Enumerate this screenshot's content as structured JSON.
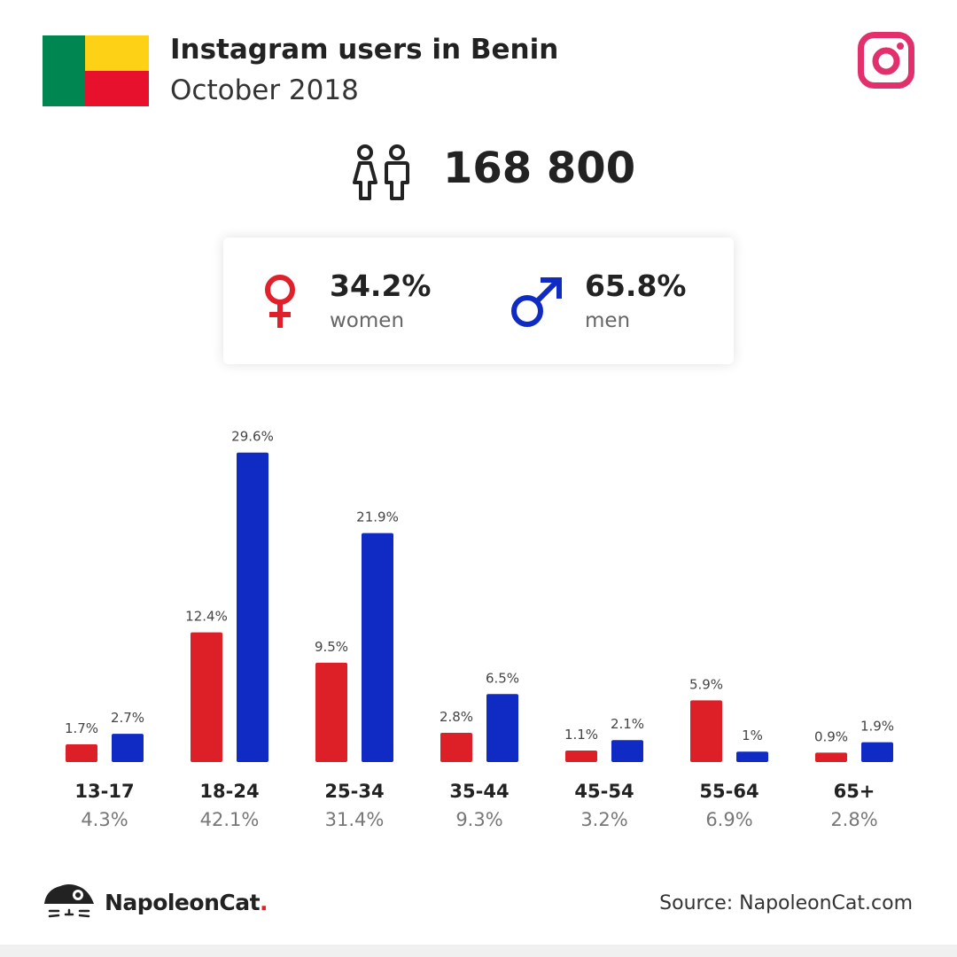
{
  "header": {
    "title": "Instagram users in Benin",
    "subtitle": "October 2018",
    "flag_colors": {
      "green": "#008751",
      "yellow": "#fcd116",
      "red": "#e8112d"
    },
    "platform_icon": "instagram-icon",
    "platform_color": "#e1306c"
  },
  "summary": {
    "total_users": "168 800",
    "people_icon": "people-icon",
    "women": {
      "percent": "34.2%",
      "label": "women",
      "icon": "female-symbol-icon",
      "color": "#e0202a"
    },
    "men": {
      "percent": "65.8%",
      "label": "men",
      "icon": "male-symbol-icon",
      "color": "#0f2bc4"
    }
  },
  "colors": {
    "women": "#dd2027",
    "men": "#0f2bc4"
  },
  "chart_data": {
    "type": "bar",
    "categories": [
      "13-17",
      "18-24",
      "25-34",
      "35-44",
      "45-54",
      "55-64",
      "65+"
    ],
    "group_totals": [
      "4.3%",
      "42.1%",
      "31.4%",
      "9.3%",
      "3.2%",
      "6.9%",
      "2.8%"
    ],
    "series": [
      {
        "name": "women",
        "values": [
          1.7,
          12.4,
          9.5,
          2.8,
          1.1,
          5.9,
          0.9
        ],
        "labels": [
          "1.7%",
          "12.4%",
          "9.5%",
          "2.8%",
          "1.1%",
          "5.9%",
          "0.9%"
        ]
      },
      {
        "name": "men",
        "values": [
          2.7,
          29.6,
          21.9,
          6.5,
          2.1,
          1.0,
          1.9
        ],
        "labels": [
          "2.7%",
          "29.6%",
          "21.9%",
          "6.5%",
          "2.1%",
          "1%",
          "1.9%"
        ]
      }
    ],
    "grid": false,
    "legend": "none"
  },
  "footer": {
    "brand_name": "NapoleonCat",
    "brand_dot": ".",
    "brand_icon": "napoleoncat-logo-icon",
    "source": "Source: NapoleonCat.com"
  }
}
